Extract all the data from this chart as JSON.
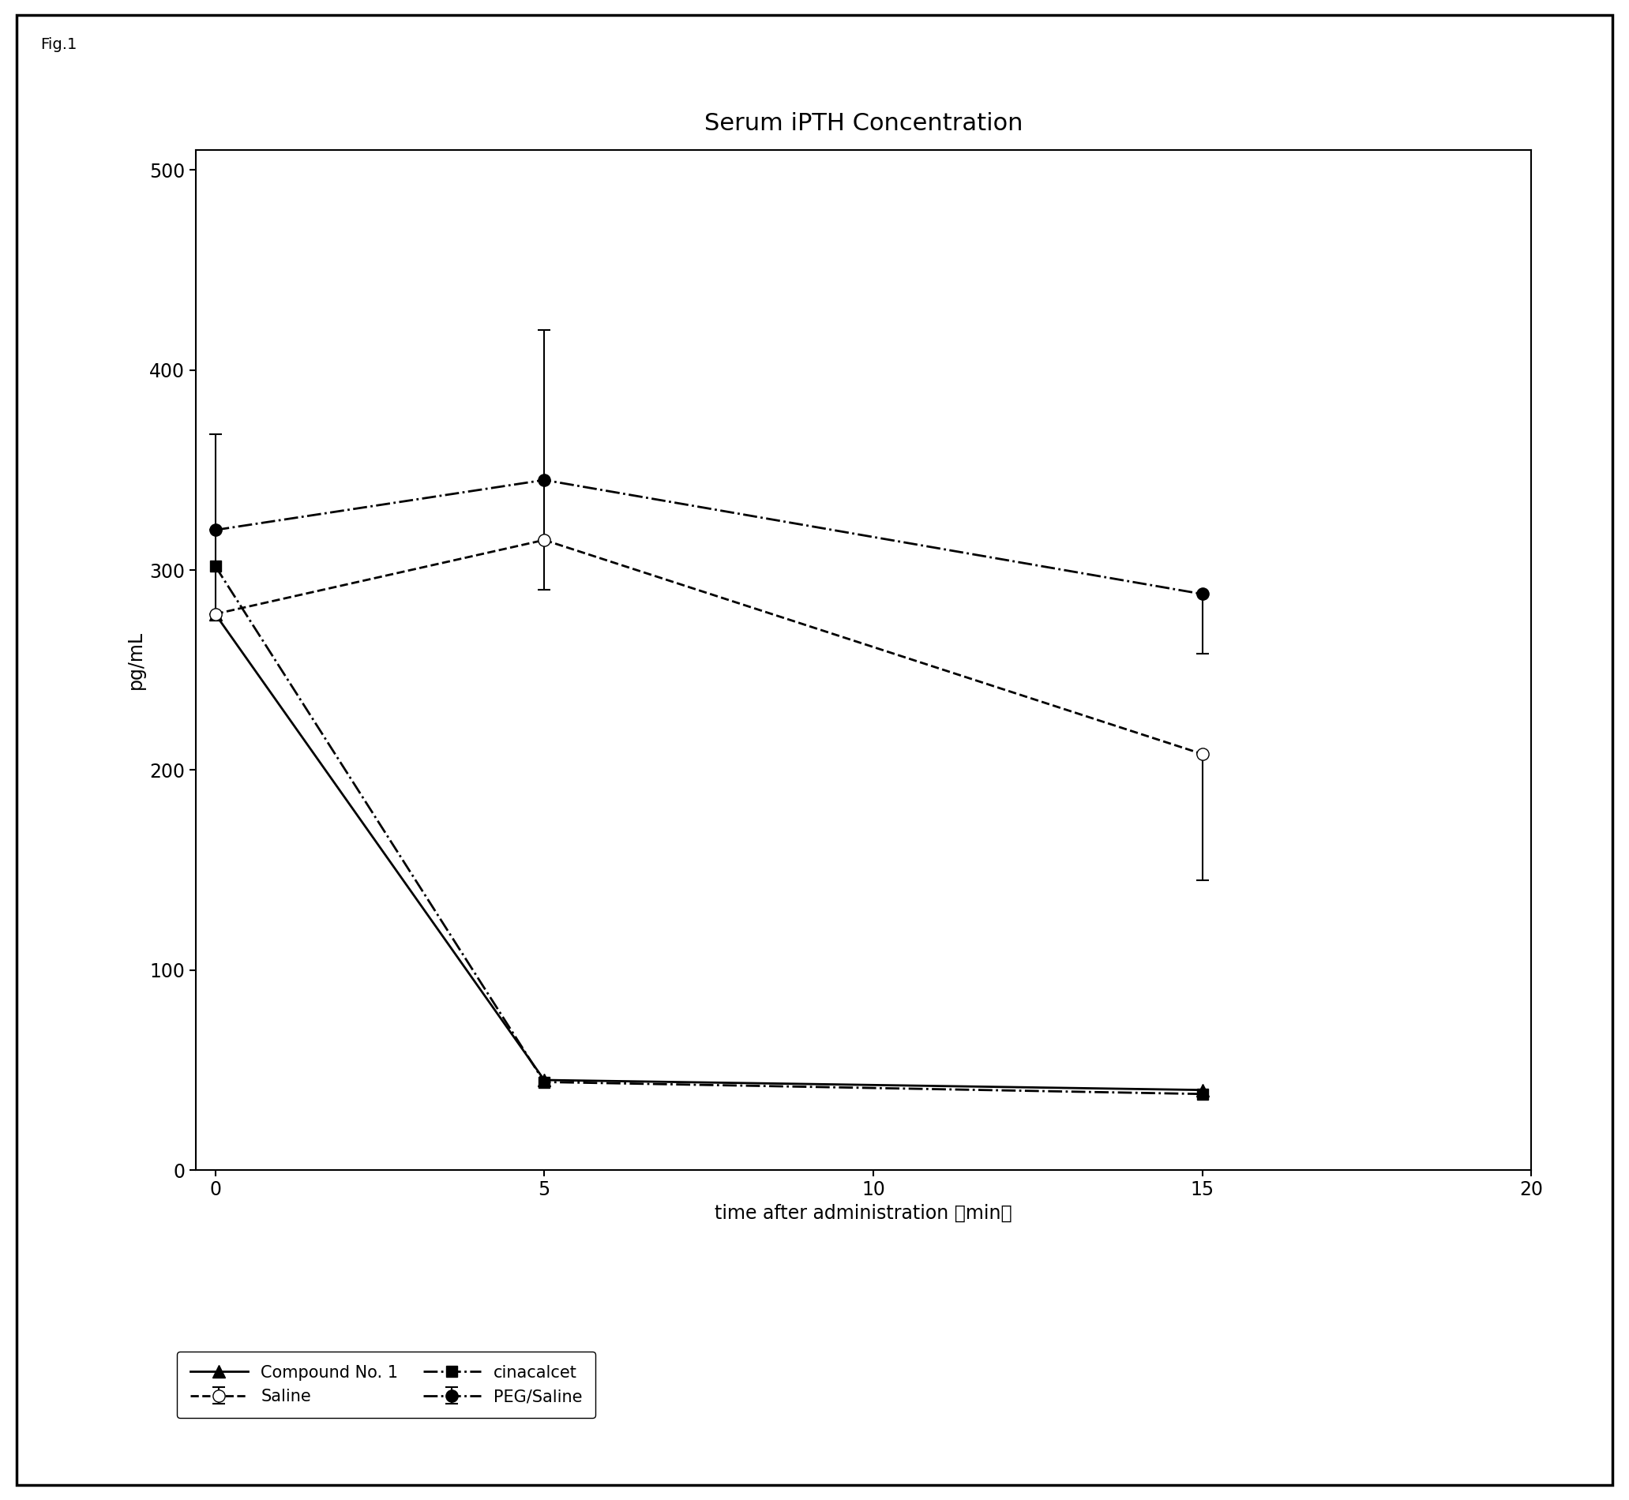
{
  "title": "Serum iPTH Concentration",
  "xlabel": "time after administration （min）",
  "ylabel": "pg/mL",
  "fig_label": "Fig.1",
  "xlim": [
    -0.3,
    20
  ],
  "ylim": [
    0,
    510
  ],
  "xticks": [
    0,
    5,
    10,
    15,
    20
  ],
  "yticks": [
    0,
    100,
    200,
    300,
    400,
    500
  ],
  "x": [
    0,
    5,
    15
  ],
  "series": {
    "Saline": {
      "y": [
        278,
        315,
        208
      ],
      "yerr_low": [
        0,
        0,
        63
      ],
      "yerr_high": [
        90,
        0,
        0
      ],
      "color": "#000000",
      "linestyle": "--",
      "marker": "o",
      "markerfacecolor": "white",
      "markersize": 11,
      "linewidth": 2.0
    },
    "PEG/Saline": {
      "y": [
        320,
        345,
        288
      ],
      "yerr_low": [
        0,
        55,
        30
      ],
      "yerr_high": [
        0,
        75,
        0
      ],
      "color": "#000000",
      "linestyle": "-.",
      "marker": "o",
      "markerfacecolor": "black",
      "markersize": 11,
      "linewidth": 2.0
    },
    "Compound No. 1": {
      "y": [
        278,
        45,
        40
      ],
      "yerr_low": [
        0,
        0,
        0
      ],
      "yerr_high": [
        0,
        0,
        0
      ],
      "color": "#000000",
      "linestyle": "-",
      "marker": "^",
      "markerfacecolor": "black",
      "markersize": 11,
      "linewidth": 2.0
    },
    "cinacalcet": {
      "y": [
        302,
        44,
        38
      ],
      "yerr_low": [
        0,
        0,
        0
      ],
      "yerr_high": [
        0,
        0,
        0
      ],
      "color": "#000000",
      "linestyle": "-.",
      "marker": "s",
      "markerfacecolor": "black",
      "markersize": 10,
      "linewidth": 2.0
    }
  },
  "legend_order": [
    "Saline",
    "Compound No. 1",
    "PEG/Saline",
    "cinacalcet"
  ],
  "background_color": "#ffffff",
  "title_fontsize": 22,
  "label_fontsize": 17,
  "tick_fontsize": 17,
  "legend_fontsize": 15,
  "outer_box_color": "#000000"
}
